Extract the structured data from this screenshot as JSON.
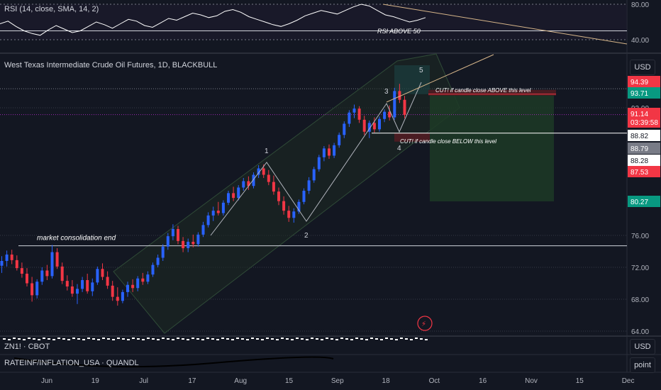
{
  "rsi_pane": {
    "title": "RSI (14, close, SMA, 14, 2)",
    "annotation": "RSI ABOVE 50",
    "axis_labels": [
      "80.00",
      "40.00"
    ]
  },
  "main_pane": {
    "title": "West Texas Intermediate Crude Oil Futures, 1D, BLACKBULL",
    "currency_button": "USD",
    "annotations": {
      "consolidation": "market consolidation end",
      "cut_above": "CUT! if candle close ABOVE this level",
      "cut_below": "CUT! if candle close BELOW this level",
      "wave_1": "1",
      "wave_2": "2",
      "wave_3": "3",
      "wave_4": "4",
      "wave_5": "5"
    }
  },
  "lower_panes": [
    {
      "title": "ZN1! · CBOT",
      "button": "USD"
    },
    {
      "title": "RATEINF/INFLATION_USA · QUANDL",
      "button": "point"
    }
  ],
  "colors": {
    "background": "#131722",
    "up": "#2962ff",
    "down": "#f23645",
    "grid": "#2a2e39",
    "text": "#d1d4dc",
    "channel": "#1e2a22",
    "target_zone": "#1d3a26",
    "stop_zone": "#4a1c22"
  },
  "chart_data": {
    "type": "candlestick",
    "symbol": "West Texas Intermediate Crude Oil Futures",
    "interval": "1D",
    "x_tick_labels": [
      "Jun",
      "19",
      "Jul",
      "17",
      "Aug",
      "15",
      "Sep",
      "18",
      "Oct",
      "16",
      "Nov",
      "15",
      "Dec"
    ],
    "y_tick_labels": [
      "92.00",
      "76.00",
      "72.00",
      "68.00",
      "64.00"
    ],
    "price_labels": [
      {
        "text": "94.39",
        "value": 94.39,
        "color": "#f23645"
      },
      {
        "text": "93.71",
        "value": 93.71,
        "color": "#089981"
      },
      {
        "text": "91.14",
        "value": 91.14,
        "color": "#f23645"
      },
      {
        "text": "03:39:58",
        "value": 91.14,
        "color": "#f23645"
      },
      {
        "text": "88.82",
        "value": 88.82,
        "color": "#ffffff"
      },
      {
        "text": "88.79",
        "value": 88.79,
        "color": "#787b86"
      },
      {
        "text": "88.28",
        "value": 88.28,
        "color": "#ffffff"
      },
      {
        "text": "87.53",
        "value": 87.53,
        "color": "#f23645"
      },
      {
        "text": "80.27",
        "value": 80.27,
        "color": "#089981"
      }
    ],
    "levels": {
      "consolidation_line": 74.7,
      "cut_above_level": 93.71,
      "cut_below_level": 88.82,
      "target_level": 80.27,
      "current_price": 91.14
    },
    "waves": [
      {
        "label": "1",
        "value": 84.9
      },
      {
        "label": "2",
        "value": 77.6
      },
      {
        "label": "3",
        "value": 92.3
      },
      {
        "label": "4",
        "value": 88.0
      },
      {
        "label": "5",
        "value": 95.0
      }
    ],
    "candles": [
      {
        "o": 72.2,
        "h": 73.4,
        "l": 71.3,
        "c": 72.8
      },
      {
        "o": 72.8,
        "h": 74.1,
        "l": 72.1,
        "c": 73.6
      },
      {
        "o": 73.6,
        "h": 74.2,
        "l": 72.4,
        "c": 72.9
      },
      {
        "o": 72.9,
        "h": 73.5,
        "l": 71.6,
        "c": 71.9
      },
      {
        "o": 71.9,
        "h": 72.6,
        "l": 70.7,
        "c": 71.2
      },
      {
        "o": 71.2,
        "h": 71.9,
        "l": 69.6,
        "c": 70.0
      },
      {
        "o": 70.0,
        "h": 70.8,
        "l": 67.7,
        "c": 68.5
      },
      {
        "o": 68.5,
        "h": 70.5,
        "l": 68.1,
        "c": 70.2
      },
      {
        "o": 70.2,
        "h": 72.0,
        "l": 69.8,
        "c": 71.6
      },
      {
        "o": 71.6,
        "h": 72.3,
        "l": 70.4,
        "c": 70.9
      },
      {
        "o": 70.9,
        "h": 74.8,
        "l": 70.6,
        "c": 73.9
      },
      {
        "o": 73.9,
        "h": 74.4,
        "l": 71.8,
        "c": 72.1
      },
      {
        "o": 72.1,
        "h": 72.6,
        "l": 69.9,
        "c": 70.3
      },
      {
        "o": 70.3,
        "h": 71.0,
        "l": 69.1,
        "c": 69.6
      },
      {
        "o": 69.6,
        "h": 70.4,
        "l": 68.3,
        "c": 68.7
      },
      {
        "o": 68.7,
        "h": 69.9,
        "l": 67.4,
        "c": 69.3
      },
      {
        "o": 69.3,
        "h": 70.8,
        "l": 68.9,
        "c": 70.4
      },
      {
        "o": 70.4,
        "h": 71.2,
        "l": 68.7,
        "c": 69.0
      },
      {
        "o": 69.0,
        "h": 70.6,
        "l": 68.4,
        "c": 70.1
      },
      {
        "o": 70.1,
        "h": 72.1,
        "l": 69.8,
        "c": 71.8
      },
      {
        "o": 71.8,
        "h": 72.5,
        "l": 70.4,
        "c": 70.8
      },
      {
        "o": 70.8,
        "h": 71.5,
        "l": 69.3,
        "c": 69.7
      },
      {
        "o": 69.7,
        "h": 70.3,
        "l": 67.8,
        "c": 68.3
      },
      {
        "o": 68.3,
        "h": 69.5,
        "l": 67.2,
        "c": 67.8
      },
      {
        "o": 67.8,
        "h": 69.2,
        "l": 67.5,
        "c": 68.9
      },
      {
        "o": 68.9,
        "h": 70.2,
        "l": 68.3,
        "c": 69.8
      },
      {
        "o": 69.8,
        "h": 70.5,
        "l": 68.9,
        "c": 69.4
      },
      {
        "o": 69.4,
        "h": 70.9,
        "l": 69.0,
        "c": 70.6
      },
      {
        "o": 70.6,
        "h": 71.3,
        "l": 69.8,
        "c": 70.2
      },
      {
        "o": 70.2,
        "h": 71.5,
        "l": 69.9,
        "c": 71.1
      },
      {
        "o": 71.1,
        "h": 72.6,
        "l": 70.8,
        "c": 72.3
      },
      {
        "o": 72.3,
        "h": 73.6,
        "l": 72.0,
        "c": 73.2
      },
      {
        "o": 73.2,
        "h": 74.9,
        "l": 72.8,
        "c": 74.6
      },
      {
        "o": 74.6,
        "h": 76.3,
        "l": 74.2,
        "c": 75.9
      },
      {
        "o": 75.9,
        "h": 77.4,
        "l": 75.4,
        "c": 76.8
      },
      {
        "o": 76.8,
        "h": 77.2,
        "l": 74.9,
        "c": 75.3
      },
      {
        "o": 75.3,
        "h": 75.8,
        "l": 73.9,
        "c": 74.4
      },
      {
        "o": 74.4,
        "h": 75.6,
        "l": 73.9,
        "c": 75.2
      },
      {
        "o": 75.2,
        "h": 76.1,
        "l": 74.5,
        "c": 74.9
      },
      {
        "o": 74.9,
        "h": 76.4,
        "l": 74.6,
        "c": 76.1
      },
      {
        "o": 76.1,
        "h": 77.7,
        "l": 75.8,
        "c": 77.3
      },
      {
        "o": 77.3,
        "h": 78.9,
        "l": 77.0,
        "c": 78.5
      },
      {
        "o": 78.5,
        "h": 79.6,
        "l": 77.8,
        "c": 79.1
      },
      {
        "o": 79.1,
        "h": 80.2,
        "l": 78.5,
        "c": 78.8
      },
      {
        "o": 78.8,
        "h": 80.4,
        "l": 78.5,
        "c": 80.1
      },
      {
        "o": 80.1,
        "h": 81.6,
        "l": 79.8,
        "c": 81.3
      },
      {
        "o": 81.3,
        "h": 82.1,
        "l": 80.3,
        "c": 80.7
      },
      {
        "o": 80.7,
        "h": 82.3,
        "l": 80.4,
        "c": 82.0
      },
      {
        "o": 82.0,
        "h": 83.2,
        "l": 81.6,
        "c": 82.8
      },
      {
        "o": 82.8,
        "h": 83.4,
        "l": 81.7,
        "c": 82.2
      },
      {
        "o": 82.2,
        "h": 83.9,
        "l": 81.9,
        "c": 83.6
      },
      {
        "o": 83.6,
        "h": 84.8,
        "l": 83.2,
        "c": 84.4
      },
      {
        "o": 84.4,
        "h": 84.9,
        "l": 83.2,
        "c": 83.6
      },
      {
        "o": 83.6,
        "h": 84.2,
        "l": 82.3,
        "c": 82.7
      },
      {
        "o": 82.7,
        "h": 83.5,
        "l": 81.1,
        "c": 81.5
      },
      {
        "o": 81.5,
        "h": 82.0,
        "l": 79.8,
        "c": 80.3
      },
      {
        "o": 80.3,
        "h": 80.9,
        "l": 78.6,
        "c": 79.1
      },
      {
        "o": 79.1,
        "h": 79.7,
        "l": 77.7,
        "c": 78.2
      },
      {
        "o": 78.2,
        "h": 79.4,
        "l": 77.6,
        "c": 79.0
      },
      {
        "o": 79.0,
        "h": 80.5,
        "l": 78.7,
        "c": 80.2
      },
      {
        "o": 80.2,
        "h": 81.9,
        "l": 79.9,
        "c": 81.6
      },
      {
        "o": 81.6,
        "h": 83.3,
        "l": 81.2,
        "c": 82.9
      },
      {
        "o": 82.9,
        "h": 84.6,
        "l": 82.6,
        "c": 84.3
      },
      {
        "o": 84.3,
        "h": 86.1,
        "l": 84.0,
        "c": 85.8
      },
      {
        "o": 85.8,
        "h": 87.2,
        "l": 85.3,
        "c": 86.9
      },
      {
        "o": 86.9,
        "h": 87.4,
        "l": 85.6,
        "c": 86.0
      },
      {
        "o": 86.0,
        "h": 87.6,
        "l": 85.7,
        "c": 87.3
      },
      {
        "o": 87.3,
        "h": 88.9,
        "l": 87.0,
        "c": 88.6
      },
      {
        "o": 88.6,
        "h": 90.3,
        "l": 88.2,
        "c": 90.0
      },
      {
        "o": 90.0,
        "h": 91.7,
        "l": 89.6,
        "c": 91.4
      },
      {
        "o": 91.4,
        "h": 92.4,
        "l": 90.7,
        "c": 91.9
      },
      {
        "o": 91.9,
        "h": 92.2,
        "l": 90.1,
        "c": 90.5
      },
      {
        "o": 90.5,
        "h": 91.0,
        "l": 88.6,
        "c": 89.0
      },
      {
        "o": 89.0,
        "h": 90.4,
        "l": 88.2,
        "c": 90.1
      },
      {
        "o": 90.1,
        "h": 90.8,
        "l": 88.9,
        "c": 89.3
      },
      {
        "o": 89.3,
        "h": 90.9,
        "l": 89.0,
        "c": 90.6
      },
      {
        "o": 90.6,
        "h": 91.8,
        "l": 90.2,
        "c": 91.5
      },
      {
        "o": 91.5,
        "h": 92.3,
        "l": 90.4,
        "c": 90.8
      },
      {
        "o": 90.8,
        "h": 94.5,
        "l": 90.5,
        "c": 94.1
      },
      {
        "o": 94.1,
        "h": 95.0,
        "l": 92.6,
        "c": 93.0
      },
      {
        "o": 93.0,
        "h": 93.5,
        "l": 90.7,
        "c": 91.1
      }
    ],
    "rsi": [
      58,
      61,
      55,
      50,
      47,
      45,
      51,
      56,
      52,
      48,
      50,
      55,
      60,
      57,
      53,
      58,
      63,
      61,
      56,
      54,
      59,
      64,
      62,
      66,
      70,
      68,
      65,
      67,
      72,
      74,
      71,
      66,
      63,
      60,
      57,
      55,
      58,
      62,
      67,
      70,
      73,
      71,
      69,
      73,
      77,
      80,
      78,
      73,
      68,
      66,
      63,
      60,
      62,
      65
    ],
    "rsi_levels": {
      "upper": 80,
      "middle": 50,
      "lower": 40
    }
  }
}
